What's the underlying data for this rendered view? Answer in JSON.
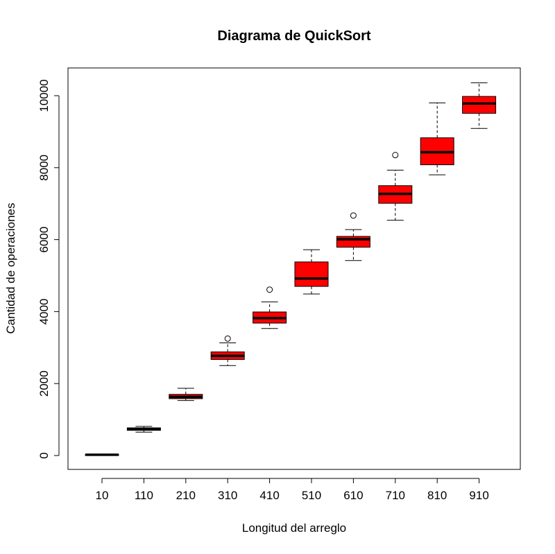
{
  "chart_data": {
    "type": "boxplot",
    "title": "Diagrama de QuickSort",
    "xlabel": "Longitud del arreglo",
    "ylabel": "Cantidad de operaciones",
    "ylim": [
      -400,
      10800
    ],
    "yticks": [
      0,
      2000,
      4000,
      6000,
      8000,
      10000
    ],
    "box_color": "#ff0000",
    "categories": [
      "10",
      "110",
      "210",
      "310",
      "410",
      "510",
      "610",
      "710",
      "810",
      "910"
    ],
    "boxes": [
      {
        "whisker_low": 18,
        "q1": 20,
        "median": 22,
        "q3": 24,
        "whisker_high": 27,
        "outliers": []
      },
      {
        "whisker_low": 650,
        "q1": 700,
        "median": 730,
        "q3": 770,
        "whisker_high": 810,
        "outliers": []
      },
      {
        "whisker_low": 1530,
        "q1": 1580,
        "median": 1630,
        "q3": 1700,
        "whisker_high": 1870,
        "outliers": []
      },
      {
        "whisker_low": 2500,
        "q1": 2670,
        "median": 2770,
        "q3": 2880,
        "whisker_high": 3130,
        "outliers": [
          3250
        ]
      },
      {
        "whisker_low": 3530,
        "q1": 3680,
        "median": 3820,
        "q3": 3990,
        "whisker_high": 4270,
        "outliers": [
          4610
        ]
      },
      {
        "whisker_low": 4490,
        "q1": 4700,
        "median": 4920,
        "q3": 5380,
        "whisker_high": 5720,
        "outliers": []
      },
      {
        "whisker_low": 5420,
        "q1": 5790,
        "median": 6010,
        "q3": 6090,
        "whisker_high": 6280,
        "outliers": [
          6670
        ]
      },
      {
        "whisker_low": 6540,
        "q1": 7010,
        "median": 7270,
        "q3": 7500,
        "whisker_high": 7930,
        "outliers": [
          8350
        ]
      },
      {
        "whisker_low": 7800,
        "q1": 8080,
        "median": 8430,
        "q3": 8830,
        "whisker_high": 9800,
        "outliers": []
      },
      {
        "whisker_low": 9090,
        "q1": 9510,
        "median": 9780,
        "q3": 9980,
        "whisker_high": 10360,
        "outliers": []
      }
    ]
  }
}
